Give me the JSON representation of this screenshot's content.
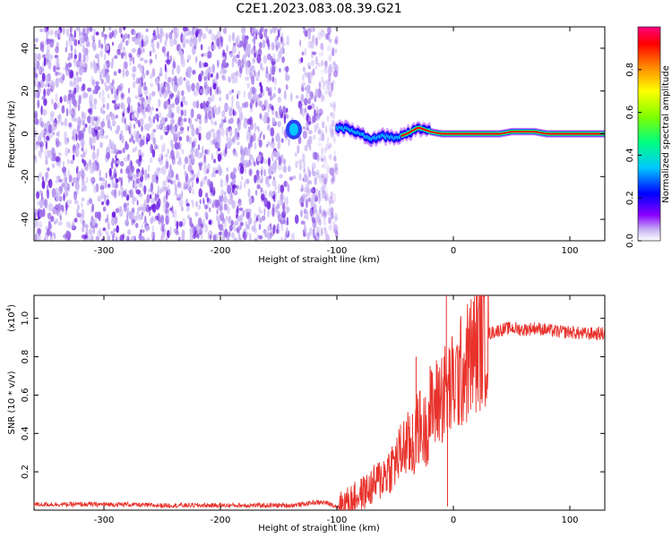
{
  "figure_title": "C2E1.2023.083.08.39.G21",
  "colors": {
    "snr_line": "#e8322b",
    "axis": "#000000",
    "scatter_dim": "#c9b6f3",
    "scatter_mid": "#9a6ae8",
    "scatter_strong": "#6a1be0"
  },
  "chart_data": [
    {
      "type": "heatmap",
      "title": "",
      "xlabel": "Height of straight line (km)",
      "ylabel": "Frequency (Hz)",
      "xlim": [
        -360,
        130
      ],
      "ylim": [
        -50,
        50
      ],
      "x_ticks": [
        -300,
        -200,
        -100,
        0,
        100
      ],
      "x_tick_labels": [
        "-300",
        "-200",
        "-100",
        "0",
        "100"
      ],
      "y_ticks": [
        -40,
        -20,
        0,
        20,
        40
      ],
      "y_tick_labels": [
        "-40",
        "-20",
        "0",
        "20",
        "40"
      ],
      "colorbar": {
        "label": "Normalized spectral amplitude",
        "range": [
          0,
          1
        ],
        "ticks": [
          0.0,
          0.2,
          0.4,
          0.6,
          0.8
        ],
        "tick_labels": [
          "0.0",
          "0.2",
          "0.4",
          "0.6",
          "0.8"
        ],
        "colormap": [
          "#ffffff",
          "#8a00ff",
          "#0000ff",
          "#00c8ff",
          "#00ff80",
          "#80ff00",
          "#ffff00",
          "#ff8000",
          "#ff0000",
          "#ff0080"
        ]
      },
      "noise_region": {
        "x_range": [
          -360,
          -100
        ],
        "y_range": [
          -50,
          50
        ],
        "typical_amplitude": 0.1
      },
      "gap_region": {
        "x_range": [
          -142,
          -132
        ]
      },
      "clump": {
        "x": -137,
        "y": 2,
        "amplitude": 0.3
      },
      "ridge": {
        "x": [
          -100,
          -90,
          -80,
          -70,
          -60,
          -50,
          -40,
          -30,
          -20,
          -10,
          0,
          10,
          20,
          30,
          40,
          50,
          60,
          70,
          80,
          90,
          100,
          110,
          120,
          130
        ],
        "y": [
          3,
          2,
          0,
          -2,
          -1,
          -2,
          0,
          3,
          1,
          0,
          0,
          0,
          0,
          0,
          0,
          1,
          1,
          1,
          0,
          0,
          0,
          0,
          0,
          0
        ],
        "amplitude": [
          0.35,
          0.4,
          0.45,
          0.45,
          0.5,
          0.55,
          0.65,
          0.7,
          0.75,
          0.8,
          0.85,
          0.85,
          0.85,
          0.85,
          0.85,
          0.85,
          0.8,
          0.8,
          0.85,
          0.85,
          0.85,
          0.85,
          0.85,
          0.85
        ]
      }
    },
    {
      "type": "line",
      "title": "",
      "xlabel": "Height of straight line (km)",
      "ylabel": "SNR (10 * v/v)",
      "y_multiplier": "(x10",
      "y_multiplier_exp": "4",
      "y_multiplier_close": ")",
      "xlim": [
        -360,
        130
      ],
      "ylim": [
        0,
        1.12
      ],
      "x_ticks": [
        -300,
        -200,
        -100,
        0,
        100
      ],
      "x_tick_labels": [
        "-300",
        "-200",
        "-100",
        "0",
        "100"
      ],
      "y_ticks": [
        0.2,
        0.4,
        0.6,
        0.8,
        1.0
      ],
      "y_tick_labels": [
        "0.2",
        "0.4",
        "0.6",
        "0.8",
        "1.0"
      ],
      "series": [
        {
          "color": "#e8322b",
          "x": [
            -360,
            -340,
            -320,
            -300,
            -280,
            -260,
            -240,
            -220,
            -200,
            -180,
            -160,
            -140,
            -130,
            -120,
            -110,
            -100,
            -90,
            -80,
            -70,
            -60,
            -50,
            -40,
            -35,
            -30,
            -25,
            -20,
            -15,
            -10,
            -5,
            0,
            5,
            10,
            15,
            20,
            25,
            30,
            35,
            40,
            50,
            60,
            70,
            80,
            90,
            100,
            110,
            120,
            130
          ],
          "values": [
            0.03,
            0.03,
            0.03,
            0.03,
            0.03,
            0.025,
            0.025,
            0.025,
            0.025,
            0.025,
            0.025,
            0.025,
            0.03,
            0.04,
            0.04,
            0.02,
            0.05,
            0.08,
            0.12,
            0.18,
            0.25,
            0.35,
            0.3,
            0.45,
            0.4,
            0.5,
            0.55,
            0.6,
            0.62,
            0.65,
            0.7,
            0.75,
            0.8,
            0.85,
            0.9,
            0.92,
            0.93,
            0.94,
            0.95,
            0.94,
            0.95,
            0.94,
            0.93,
            0.93,
            0.92,
            0.92,
            0.92
          ],
          "spikes": [
            {
              "x": -35,
              "y": 0.5
            },
            {
              "x": -32,
              "y": 0.8
            },
            {
              "x": -20,
              "y": 0.75
            },
            {
              "x": -8,
              "y": 0.8
            },
            {
              "x": -6,
              "y": 1.12
            },
            {
              "x": -5,
              "y": 0.02
            }
          ]
        }
      ]
    }
  ]
}
